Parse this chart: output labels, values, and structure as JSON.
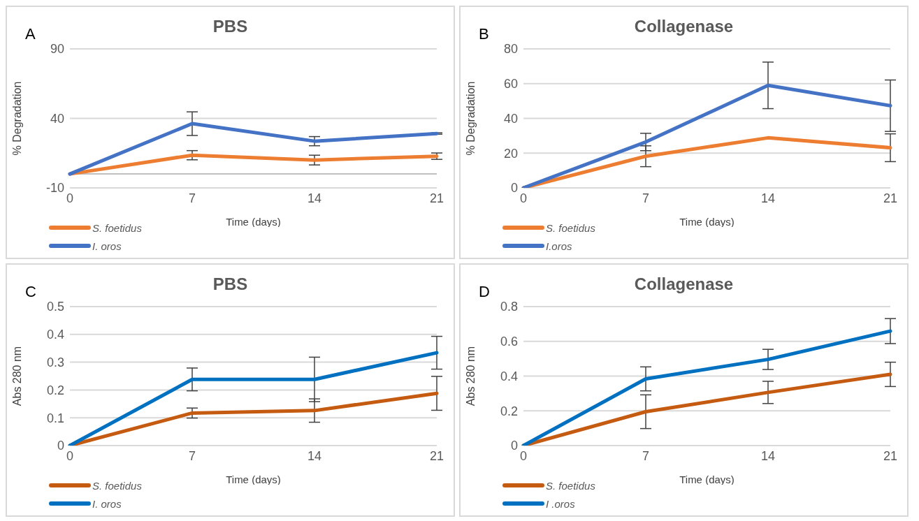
{
  "chart_data": [
    {
      "type": "line",
      "title": "PBS",
      "xlabel": "Time (days)",
      "ylabel": "% Degradation",
      "annotations": [
        "A"
      ],
      "categories": [
        "0",
        "7",
        "14",
        "21"
      ],
      "ylim": [
        -10,
        90
      ],
      "yticks": [
        -10,
        40,
        90
      ],
      "grid": "y",
      "legend": "bottom left",
      "marker": "none",
      "line_style": "solid",
      "ref_lines": [
        {
          "axis": "y",
          "value": 0,
          "color": "#bfbfbf"
        }
      ],
      "series": [
        {
          "name": "S. foetidus",
          "color": "#ed7d31",
          "values": [
            0,
            13.5,
            10,
            12.8
          ],
          "errors": [
            null,
            3.3,
            3.5,
            2.3
          ]
        },
        {
          "name": "I. oros",
          "color": "#4472c4",
          "values": [
            0,
            36.2,
            23.6,
            29.1
          ],
          "errors": [
            null,
            8.5,
            3.3,
            0.5
          ]
        }
      ]
    },
    {
      "type": "line",
      "title": "Collagenase",
      "xlabel": "Time (days)",
      "ylabel": "% Degradation",
      "annotations": [
        "B"
      ],
      "categories": [
        "0",
        "7",
        "14",
        "21"
      ],
      "ylim": [
        0,
        80
      ],
      "yticks": [
        0,
        20,
        40,
        60,
        80
      ],
      "grid": "y",
      "legend": "bottom left",
      "marker": "none",
      "line_style": "solid",
      "series": [
        {
          "name": "S. foetidus",
          "color": "#ed7d31",
          "values": [
            0,
            18.2,
            28.8,
            23.1
          ],
          "errors": [
            null,
            6,
            null,
            8
          ]
        },
        {
          "name": "I.oros",
          "color": "#4472c4",
          "values": [
            0,
            26.4,
            59,
            47.3
          ],
          "errors": [
            null,
            5,
            13.4,
            14.8
          ]
        }
      ]
    },
    {
      "type": "line",
      "title": "PBS",
      "xlabel": "Time (days)",
      "ylabel": "Abs 280 nm",
      "annotations": [
        "C"
      ],
      "categories": [
        "0",
        "7",
        "14",
        "21"
      ],
      "ylim": [
        0,
        0.5
      ],
      "yticks": [
        0,
        0.1,
        0.2,
        0.3,
        0.4,
        0.5
      ],
      "grid": "y",
      "legend": "bottom left",
      "marker": "none",
      "line_style": "solid",
      "series": [
        {
          "name": "S. foetidus",
          "color": "#c55a11",
          "values": [
            0,
            0.117,
            0.126,
            0.188
          ],
          "errors": [
            null,
            0.018,
            0.042,
            0.061
          ]
        },
        {
          "name": "I. oros",
          "color": "#0070c0",
          "values": [
            0,
            0.238,
            0.238,
            0.334
          ],
          "errors": [
            null,
            0.041,
            0.08,
            0.059
          ]
        }
      ]
    },
    {
      "type": "line",
      "title": "Collagenase",
      "xlabel": "Time (days)",
      "ylabel": "Abs 280 nm",
      "annotations": [
        "D"
      ],
      "categories": [
        "0",
        "7",
        "14",
        "21"
      ],
      "ylim": [
        0,
        0.8
      ],
      "yticks": [
        0,
        0.2,
        0.4,
        0.6,
        0.8
      ],
      "grid": "y",
      "legend": "bottom left",
      "marker": "none",
      "line_style": "solid",
      "series": [
        {
          "name": "S. foetidus",
          "color": "#c55a11",
          "values": [
            0,
            0.195,
            0.306,
            0.41
          ],
          "errors": [
            null,
            0.097,
            0.064,
            0.07
          ]
        },
        {
          "name": "I .oros",
          "color": "#0070c0",
          "values": [
            0,
            0.384,
            0.496,
            0.659
          ],
          "errors": [
            null,
            0.069,
            0.058,
            0.072
          ]
        }
      ]
    }
  ]
}
